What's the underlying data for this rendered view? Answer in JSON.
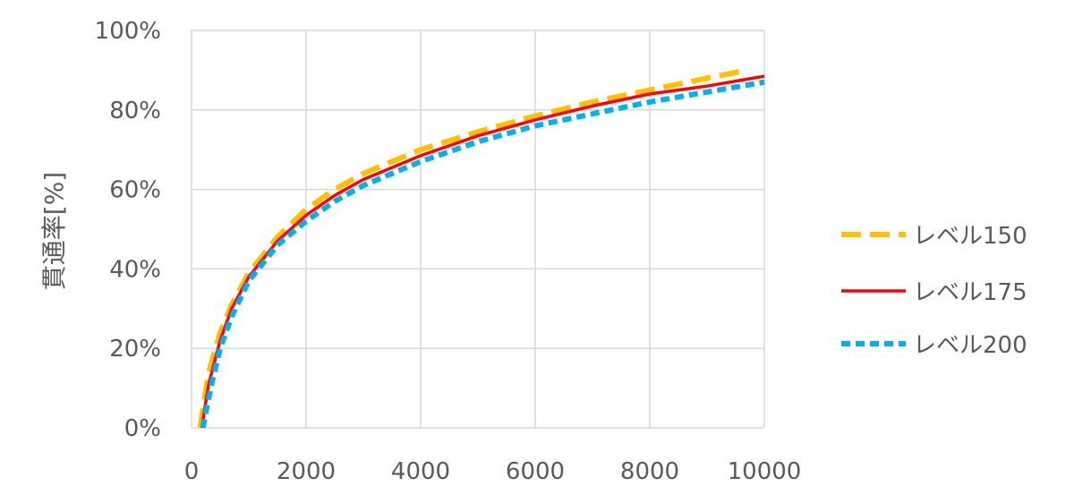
{
  "chart_data": {
    "type": "line",
    "title": "",
    "xlabel": "",
    "ylabel": "貫通率[%]",
    "xlim": [
      0,
      10000
    ],
    "ylim": [
      0,
      100
    ],
    "x_ticks": [
      0,
      2000,
      4000,
      6000,
      8000,
      10000
    ],
    "x_tick_labels": [
      "0",
      "2000",
      "4000",
      "6000",
      "8000",
      "10000"
    ],
    "y_ticks": [
      0,
      20,
      40,
      60,
      80,
      100
    ],
    "y_tick_labels": [
      "0%",
      "20%",
      "40%",
      "60%",
      "80%",
      "100%"
    ],
    "grid": true,
    "legend_position": "right",
    "series": [
      {
        "name": "レベル150",
        "color": "#FFC000",
        "style": "long-dash",
        "x": [
          150,
          200,
          300,
          500,
          700,
          1000,
          1500,
          2000,
          2500,
          3000,
          3500,
          4000,
          5000,
          6000,
          7000,
          8000,
          9000,
          9700
        ],
        "y": [
          0,
          5,
          14,
          24,
          31,
          39,
          48,
          55,
          60,
          64,
          67,
          70,
          74.5,
          78.5,
          82,
          85,
          88,
          90
        ]
      },
      {
        "name": "レベル175",
        "color": "#FF0000",
        "style": "solid",
        "x": [
          180,
          220,
          300,
          500,
          700,
          1000,
          1500,
          2000,
          2500,
          3000,
          3500,
          4000,
          5000,
          6000,
          7000,
          8000,
          9000,
          10000
        ],
        "y": [
          0,
          4,
          11,
          22,
          30,
          38,
          47,
          53.5,
          58.5,
          62.5,
          65.5,
          68.5,
          73.5,
          77.5,
          81,
          84,
          86,
          88.5
        ]
      },
      {
        "name": "レベル200",
        "color": "#00B0F0",
        "style": "short-dash",
        "x": [
          200,
          250,
          350,
          500,
          700,
          1000,
          1500,
          2000,
          2500,
          3000,
          3500,
          4000,
          5000,
          6000,
          7000,
          8000,
          9000,
          10000
        ],
        "y": [
          0,
          4,
          11,
          20,
          28,
          37,
          46,
          52,
          57,
          61,
          64,
          67,
          72,
          76,
          79,
          82,
          84.5,
          87
        ]
      }
    ]
  }
}
